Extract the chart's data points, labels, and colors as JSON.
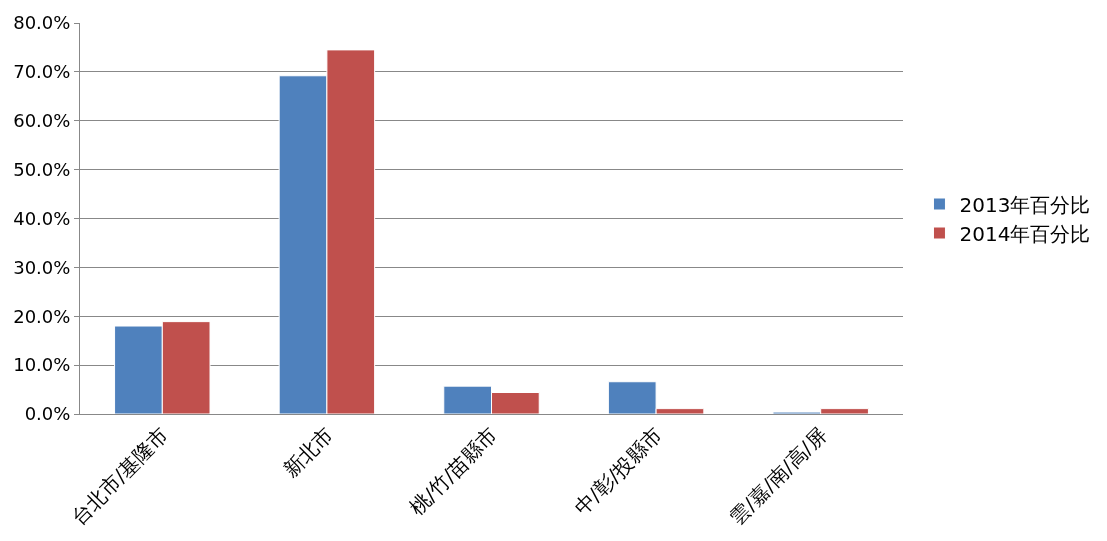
{
  "chart_data": {
    "type": "bar",
    "categories": [
      "台北市/基隆市",
      "新北市",
      "桃/竹/苗縣市",
      "中/彰/投縣市",
      "雲/嘉/南/高/屏"
    ],
    "series": [
      {
        "name": "2013年百分比",
        "color": "#4f81bd",
        "values": [
          18.0,
          69.2,
          5.7,
          6.6,
          0.4
        ]
      },
      {
        "name": "2014年百分比",
        "color": "#c0504d",
        "values": [
          18.9,
          74.5,
          4.4,
          1.1,
          1.1
        ]
      }
    ],
    "ylim": [
      0,
      80
    ],
    "yticks": [
      {
        "value": 0,
        "label": "0.0%"
      },
      {
        "value": 10,
        "label": "10.0%"
      },
      {
        "value": 20,
        "label": "20.0%"
      },
      {
        "value": 30,
        "label": "30.0%"
      },
      {
        "value": 40,
        "label": "40.0%"
      },
      {
        "value": 50,
        "label": "50.0%"
      },
      {
        "value": 60,
        "label": "60.0%"
      },
      {
        "value": 70,
        "label": "70.0%"
      },
      {
        "value": 80,
        "label": "80.0%"
      }
    ],
    "grid": "y",
    "legend": "right"
  }
}
